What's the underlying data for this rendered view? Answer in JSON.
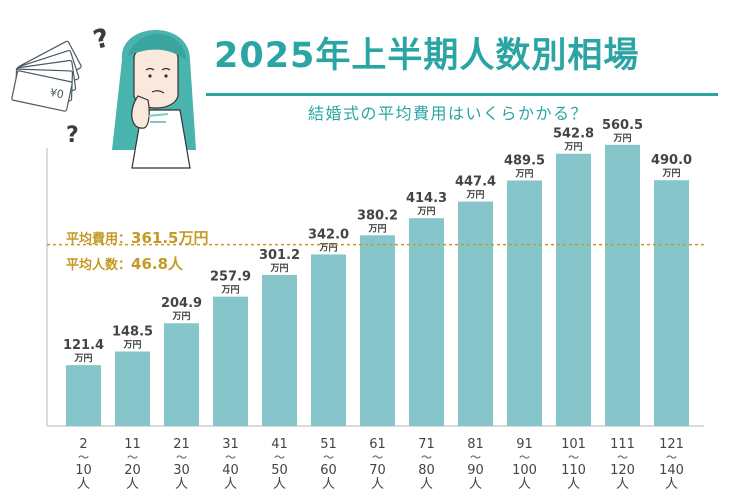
{
  "title": "2025年上半期人数別相場",
  "subtitle": "結婚式の平均費用はいくらかかる？",
  "summary": {
    "cost_label": "平均費用：",
    "cost_value": "361.5万円",
    "guests_label": "平均人数：",
    "guests_value": "46.8人"
  },
  "colors": {
    "accent": "#2aa5a3",
    "bar": "#86c6cb",
    "avg_line": "#c59a24",
    "text": "#444444"
  },
  "chart_data": {
    "type": "bar",
    "title": "2025年上半期人数別相場",
    "unit": "万円",
    "categories": [
      "2〜10人",
      "11〜20人",
      "21〜30人",
      "31〜40人",
      "41〜50人",
      "51〜60人",
      "61〜70人",
      "71〜80人",
      "81〜90人",
      "91〜100人",
      "101〜110人",
      "111〜120人",
      "121〜140人"
    ],
    "category_parts": [
      [
        "2",
        "〜",
        "10",
        "人"
      ],
      [
        "11",
        "〜",
        "20",
        "人"
      ],
      [
        "21",
        "〜",
        "30",
        "人"
      ],
      [
        "31",
        "〜",
        "40",
        "人"
      ],
      [
        "41",
        "〜",
        "50",
        "人"
      ],
      [
        "51",
        "〜",
        "60",
        "人"
      ],
      [
        "61",
        "〜",
        "70",
        "人"
      ],
      [
        "71",
        "〜",
        "80",
        "人"
      ],
      [
        "81",
        "〜",
        "90",
        "人"
      ],
      [
        "91",
        "〜",
        "100",
        "人"
      ],
      [
        "101",
        "〜",
        "110",
        "人"
      ],
      [
        "111",
        "〜",
        "120",
        "人"
      ],
      [
        "121",
        "〜",
        "140",
        "人"
      ]
    ],
    "values": [
      121.4,
      148.5,
      204.9,
      257.9,
      301.2,
      342.0,
      380.2,
      414.3,
      447.4,
      489.5,
      542.8,
      560.5,
      490.0
    ],
    "value_labels": [
      "121.4",
      "148.5",
      "204.9",
      "257.9",
      "301.2",
      "342.0",
      "380.2",
      "414.3",
      "447.4",
      "489.5",
      "542.8",
      "560.5",
      "490.0"
    ],
    "average": 361.5,
    "ylim": [
      0,
      620
    ],
    "grid": false,
    "legend": "none"
  }
}
